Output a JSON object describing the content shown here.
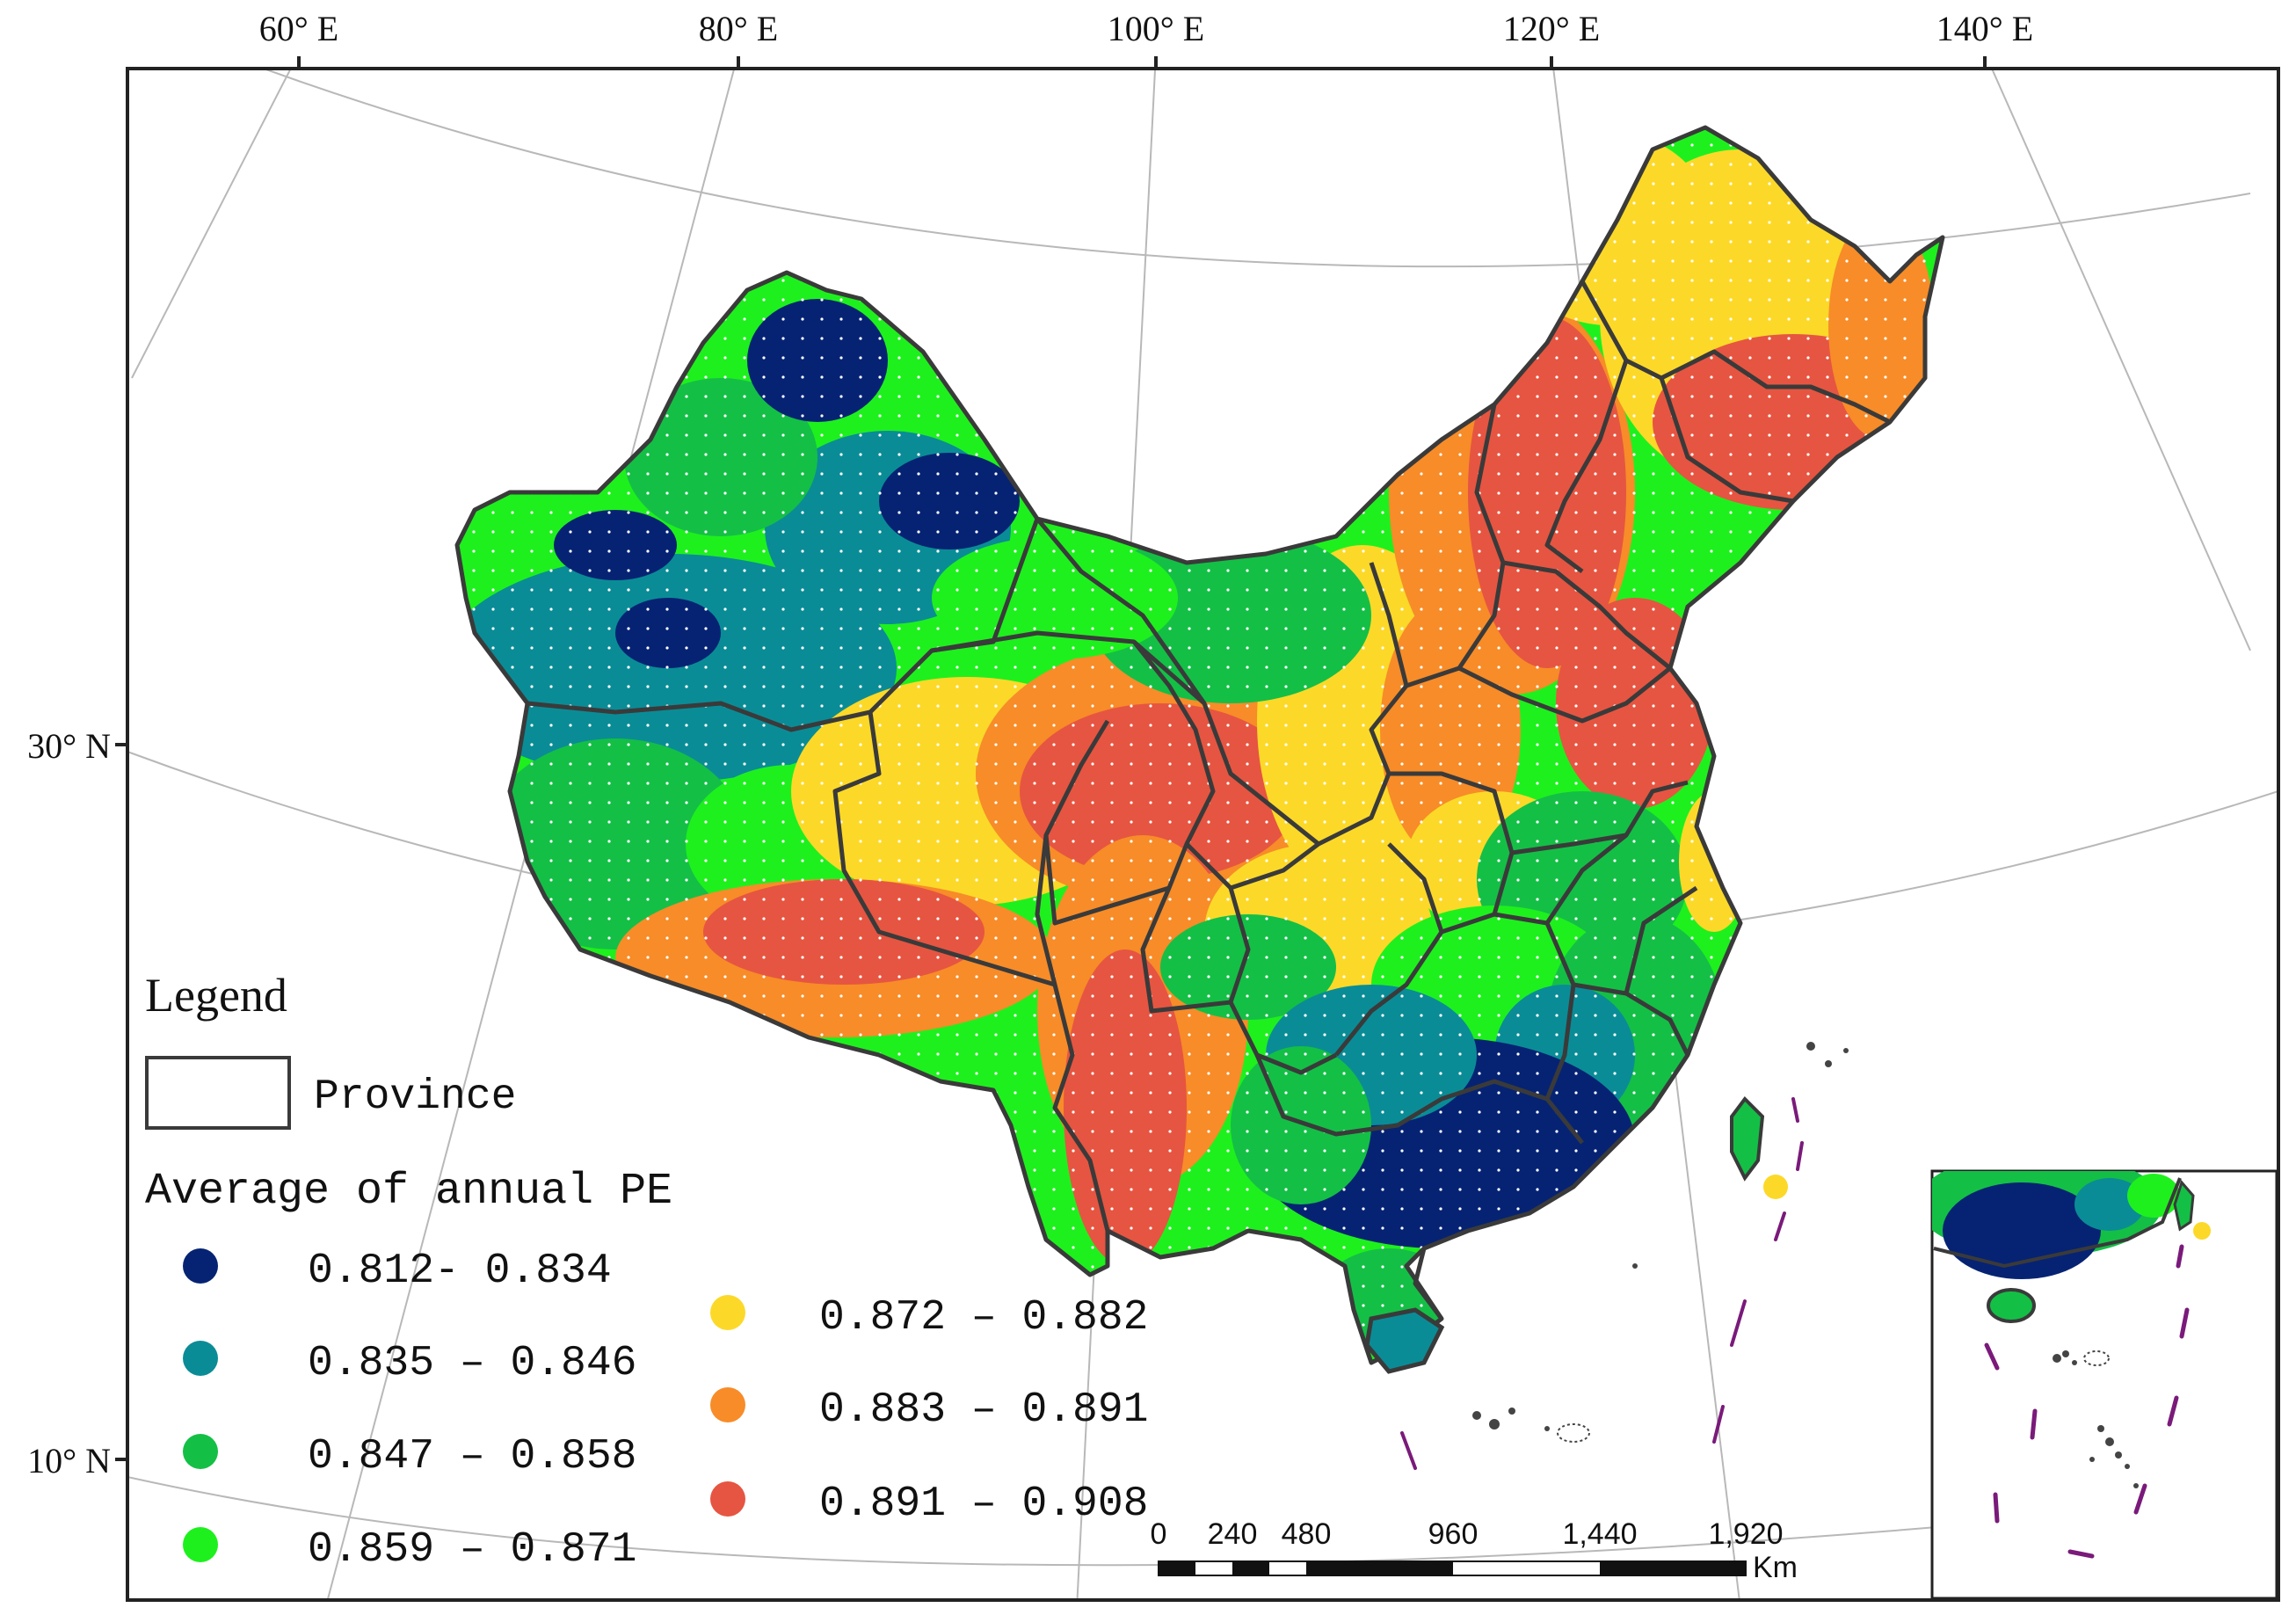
{
  "graticule": {
    "lon_labels": [
      "60° E",
      "80° E",
      "100° E",
      "120° E",
      "140° E"
    ],
    "lat_labels": [
      "30° N",
      "10° N"
    ]
  },
  "legend": {
    "title": "Legend",
    "province_label": "Province",
    "pe_title": "Average of annual PE",
    "classes": [
      {
        "label": "0.812- 0.834",
        "color": "#062373"
      },
      {
        "label": "0.835 – 0.846",
        "color": "#0a8c96"
      },
      {
        "label": "0.847 – 0.858",
        "color": "#14bf46"
      },
      {
        "label": "0.859 – 0.871",
        "color": "#1ef01e"
      },
      {
        "label": "0.872 – 0.882",
        "color": "#fcd928"
      },
      {
        "label": "0.883 – 0.891",
        "color": "#f78c28"
      },
      {
        "label": "0.891 – 0.908",
        "color": "#e65541"
      }
    ]
  },
  "scalebar": {
    "ticks": [
      "0",
      "240",
      "480",
      "960",
      "1,440",
      "1,920"
    ],
    "unit": "Km"
  },
  "colors": {
    "frame": "#222222",
    "province_border": "#3a3a3a",
    "graticule": "#b8b8b8",
    "nine_dash": "#7a1a7a"
  }
}
